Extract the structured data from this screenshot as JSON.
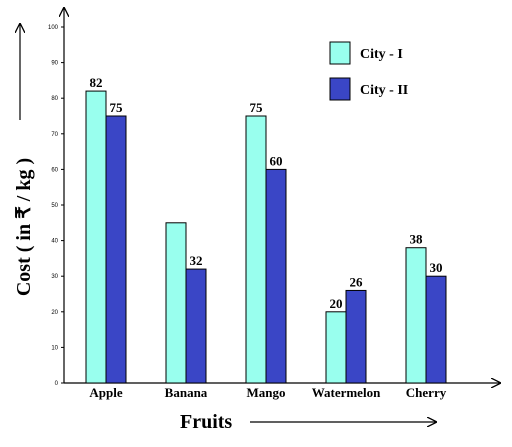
{
  "chart_data": {
    "type": "bar",
    "categories": [
      "Apple",
      "Banana",
      "Mango",
      "Watermelon",
      "Cherry"
    ],
    "series": [
      {
        "name": "City - I",
        "values": [
          82,
          45,
          75,
          20,
          38
        ],
        "color": "#99ffee"
      },
      {
        "name": "City - II",
        "values": [
          75,
          32,
          60,
          26,
          30
        ],
        "color": "#3a46c6"
      }
    ],
    "data_labels": [
      [
        "82",
        "",
        "75",
        "20",
        "38"
      ],
      [
        "75",
        "32",
        "60",
        "26",
        "30"
      ]
    ],
    "xlabel": "Fruits",
    "ylabel": "Cost ( in ₹ / kg )",
    "ylim": [
      0,
      100
    ],
    "yticks": [
      0,
      10,
      20,
      30,
      40,
      50,
      60,
      70,
      80,
      90,
      100
    ],
    "grid": false,
    "legend_position": "top-right"
  }
}
